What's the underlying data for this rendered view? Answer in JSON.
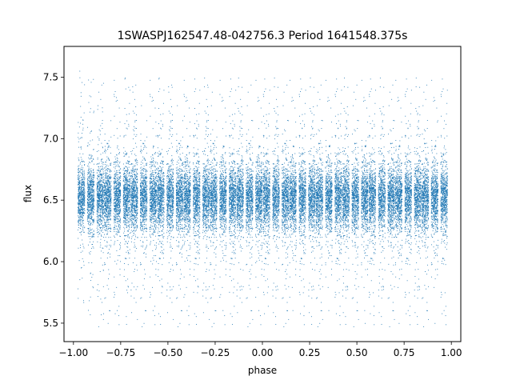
{
  "chart_data": {
    "type": "scatter",
    "title": "1SWASPJ162547.48-042756.3 Period 1641548.375s",
    "xlabel": "phase",
    "ylabel": "flux",
    "xlim": [
      -1.05,
      1.05
    ],
    "ylim": [
      5.35,
      7.75
    ],
    "grid": false,
    "legend": "none",
    "point_color": "#1f77b4",
    "x_ticks": [
      {
        "value": -1.0,
        "label": "−1.00"
      },
      {
        "value": -0.75,
        "label": "−0.75"
      },
      {
        "value": -0.5,
        "label": "−0.50"
      },
      {
        "value": -0.25,
        "label": "−0.25"
      },
      {
        "value": 0.0,
        "label": "0.00"
      },
      {
        "value": 0.25,
        "label": "0.25"
      },
      {
        "value": 0.5,
        "label": "0.50"
      },
      {
        "value": 0.75,
        "label": "0.75"
      },
      {
        "value": 1.0,
        "label": "1.00"
      }
    ],
    "y_ticks": [
      {
        "value": 5.5,
        "label": "5.5"
      },
      {
        "value": 6.0,
        "label": "6.0"
      },
      {
        "value": 6.5,
        "label": "6.5"
      },
      {
        "value": 7.0,
        "label": "7.0"
      },
      {
        "value": 7.5,
        "label": "7.5"
      }
    ],
    "series": [
      {
        "description": "phase-folded photometry, dense vertical clusters at regular phase intervals",
        "cluster_centers_phase": [
          -0.96,
          -0.91,
          -0.86,
          -0.82,
          -0.77,
          -0.72,
          -0.68,
          -0.63,
          -0.58,
          -0.54,
          -0.49,
          -0.44,
          -0.4,
          -0.35,
          -0.3,
          -0.26,
          -0.21,
          -0.16,
          -0.12,
          -0.07,
          -0.02,
          0.02,
          0.07,
          0.12,
          0.16,
          0.21,
          0.26,
          0.3,
          0.35,
          0.4,
          0.44,
          0.49,
          0.54,
          0.58,
          0.63,
          0.68,
          0.72,
          0.77,
          0.82,
          0.86,
          0.91,
          0.96
        ],
        "cluster_halfwidth_phase": 0.018,
        "flux_median": 6.52,
        "flux_core_range": [
          6.3,
          6.75
        ],
        "flux_full_range": [
          5.47,
          7.62
        ],
        "points_per_cluster": 650
      }
    ]
  }
}
